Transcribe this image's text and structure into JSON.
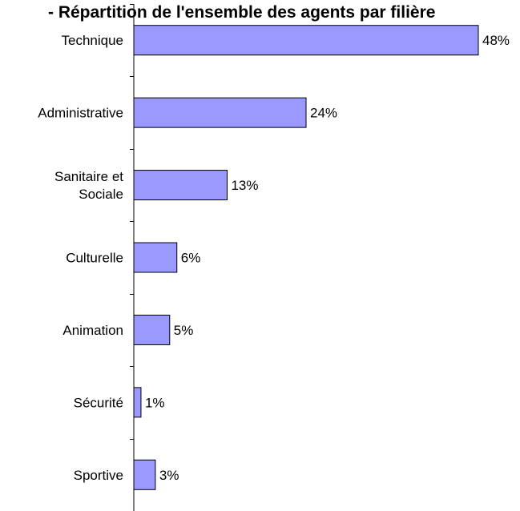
{
  "chart_data": {
    "type": "bar",
    "orientation": "horizontal",
    "title": "- Répartition de l'ensemble des agents par filière",
    "categories": [
      [
        "Technique"
      ],
      [
        "Administrative"
      ],
      [
        "Sanitaire et",
        "Sociale"
      ],
      [
        "Culturelle"
      ],
      [
        "Animation"
      ],
      [
        "Sécurité"
      ],
      [
        "Sportive"
      ]
    ],
    "values": [
      48,
      24,
      13,
      6,
      5,
      1,
      3
    ],
    "data_labels": [
      "48%",
      "24%",
      "13%",
      "6%",
      "5%",
      "1%",
      "3%"
    ],
    "value_unit": "%",
    "xlim": [
      0,
      48
    ],
    "grid": false,
    "legend": false,
    "bar_color": "#9999ff",
    "bar_border_color": "#000000"
  }
}
